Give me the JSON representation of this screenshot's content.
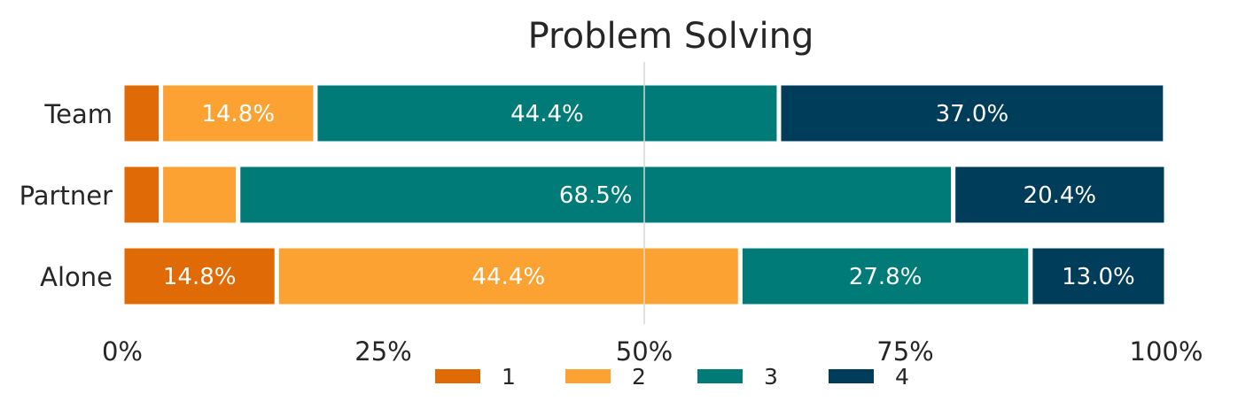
{
  "chart_data": {
    "type": "bar",
    "orientation": "horizontal",
    "stacked": true,
    "title": "Problem Solving",
    "categories": [
      "Team",
      "Partner",
      "Alone"
    ],
    "series": [
      {
        "name": "1",
        "values": [
          3.7,
          3.7,
          14.8
        ],
        "labels": [
          "",
          "",
          "14.8%"
        ]
      },
      {
        "name": "2",
        "values": [
          14.8,
          7.4,
          44.4
        ],
        "labels": [
          "14.8%",
          "",
          "44.4%"
        ]
      },
      {
        "name": "3",
        "values": [
          44.4,
          68.5,
          27.8
        ],
        "labels": [
          "44.4%",
          "68.5%",
          "27.8%"
        ]
      },
      {
        "name": "4",
        "values": [
          37.0,
          20.4,
          13.0
        ],
        "labels": [
          "37.0%",
          "20.4%",
          "13.0%"
        ]
      }
    ],
    "xlim": [
      0,
      100
    ],
    "x_ticks": [
      "0%",
      "25%",
      "50%",
      "75%",
      "100%"
    ],
    "reference_line": 50,
    "colors": [
      "#e06a06",
      "#fba232",
      "#007b78",
      "#003d5b"
    ],
    "legend_position": "bottom"
  }
}
